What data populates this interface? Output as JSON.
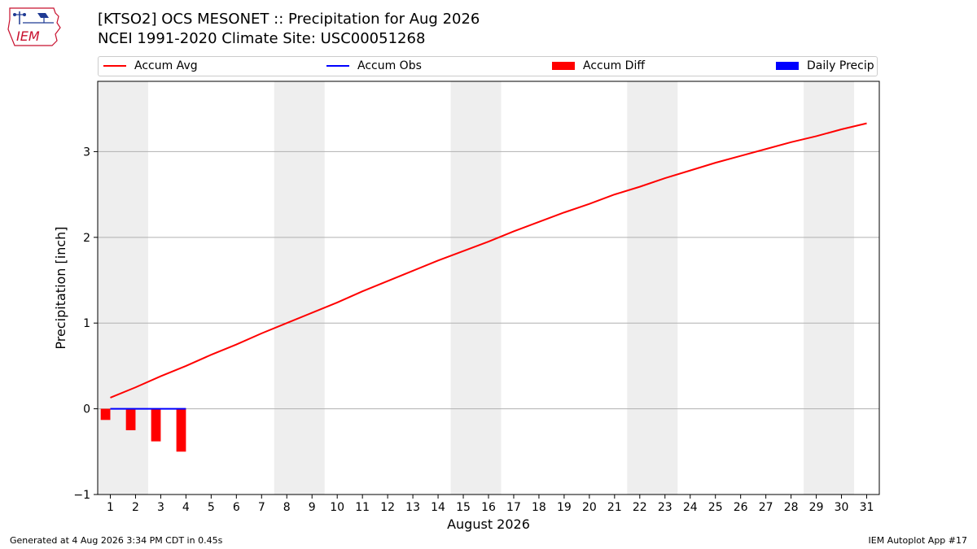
{
  "header": {
    "title_line1": "[KTSO2] OCS MESONET :: Precipitation for Aug 2026",
    "title_line2": "NCEI 1991-2020 Climate Site: USC00051268",
    "logo_text": "IEM"
  },
  "legend": {
    "items": [
      {
        "label": "Accum Avg",
        "color": "#ff0000",
        "kind": "line"
      },
      {
        "label": "Accum Obs",
        "color": "#0000ff",
        "kind": "line"
      },
      {
        "label": "Accum Diff",
        "color": "#ff0000",
        "kind": "box"
      },
      {
        "label": "Daily Precip",
        "color": "#0000ff",
        "kind": "box"
      }
    ]
  },
  "footer": {
    "left": "Generated at 4 Aug 2026 3:34 PM CDT in 0.45s",
    "right": "IEM Autoplot App #17"
  },
  "chart_data": {
    "type": "line",
    "title": "[KTSO2] OCS MESONET :: Precipitation for Aug 2026",
    "xlabel": "August 2026",
    "ylabel": "Precipitation [inch]",
    "xlim": [
      0.5,
      31.5
    ],
    "ylim": [
      -1,
      3.82
    ],
    "yticks": [
      -1,
      0,
      1,
      2,
      3
    ],
    "ytick_labels": [
      "−1",
      "0",
      "1",
      "2",
      "3"
    ],
    "x": [
      1,
      2,
      3,
      4,
      5,
      6,
      7,
      8,
      9,
      10,
      11,
      12,
      13,
      14,
      15,
      16,
      17,
      18,
      19,
      20,
      21,
      22,
      23,
      24,
      25,
      26,
      27,
      28,
      29,
      30,
      31
    ],
    "grid": "horizontal",
    "weekend_shading": [
      [
        0.5,
        2.5
      ],
      [
        7.5,
        9.5
      ],
      [
        14.5,
        16.5
      ],
      [
        21.5,
        23.5
      ],
      [
        28.5,
        30.5
      ]
    ],
    "shading_color": "#eeeeee",
    "series": [
      {
        "name": "Accum Avg",
        "type": "line",
        "color": "#ff0000",
        "x": [
          1,
          2,
          3,
          4,
          5,
          6,
          7,
          8,
          9,
          10,
          11,
          12,
          13,
          14,
          15,
          16,
          17,
          18,
          19,
          20,
          21,
          22,
          23,
          24,
          25,
          26,
          27,
          28,
          29,
          30,
          31
        ],
        "values": [
          0.13,
          0.25,
          0.38,
          0.5,
          0.63,
          0.75,
          0.88,
          1.0,
          1.12,
          1.24,
          1.37,
          1.49,
          1.61,
          1.73,
          1.84,
          1.95,
          2.07,
          2.18,
          2.29,
          2.39,
          2.5,
          2.59,
          2.69,
          2.78,
          2.87,
          2.95,
          3.03,
          3.11,
          3.18,
          3.26,
          3.33
        ]
      },
      {
        "name": "Accum Obs",
        "type": "line",
        "color": "#0000ff",
        "x": [
          1,
          2,
          3,
          4
        ],
        "values": [
          0,
          0,
          0,
          0
        ]
      },
      {
        "name": "Accum Diff",
        "type": "bar",
        "color": "#ff0000",
        "x": [
          1,
          2,
          3,
          4
        ],
        "values": [
          -0.13,
          -0.25,
          -0.38,
          -0.5
        ]
      },
      {
        "name": "Daily Precip",
        "type": "bar",
        "color": "#0000ff",
        "x": [
          1,
          2,
          3,
          4
        ],
        "values": [
          0,
          0,
          0,
          0
        ]
      }
    ]
  }
}
